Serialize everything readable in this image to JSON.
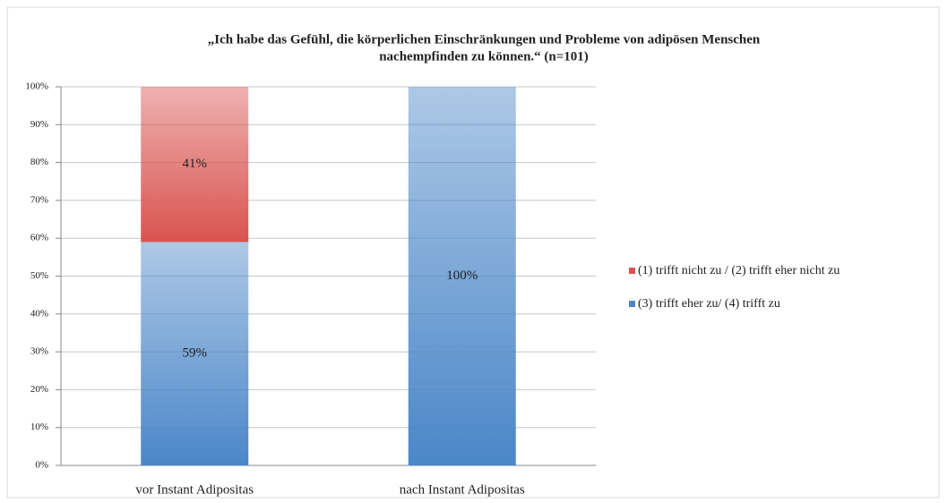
{
  "chart_data": {
    "type": "bar",
    "stacked": true,
    "title": "„Ich habe das Gefühl, die körperlichen Einschränkungen und Probleme von adipösen Menschen",
    "subtitle": "nachempfinden zu können.“ (n=101)",
    "categories": [
      "vor Instant Adipositas",
      "nach Instant Adipositas"
    ],
    "series": [
      {
        "name": "(1) trifft nicht zu / (2) trifft eher nicht zu",
        "color": "#d9534f",
        "values": [
          41,
          null
        ],
        "value_labels": [
          "41%",
          null
        ]
      },
      {
        "name": "(3) trifft eher zu/ (4) trifft zu",
        "color": "#4a86c8",
        "values": [
          59,
          100
        ],
        "value_labels": [
          "59%",
          "100%"
        ]
      }
    ],
    "ylim": [
      0,
      100
    ],
    "yticks": [
      {
        "value": 0,
        "label": "0%"
      },
      {
        "value": 10,
        "label": "10%"
      },
      {
        "value": 20,
        "label": "20%"
      },
      {
        "value": 30,
        "label": "30%"
      },
      {
        "value": 40,
        "label": "40%"
      },
      {
        "value": 50,
        "label": "50%"
      },
      {
        "value": 60,
        "label": "60%"
      },
      {
        "value": 70,
        "label": "70%"
      },
      {
        "value": 80,
        "label": "80%"
      },
      {
        "value": 90,
        "label": "90%"
      },
      {
        "value": 100,
        "label": "100%"
      }
    ],
    "grid": true,
    "legend": "right"
  }
}
